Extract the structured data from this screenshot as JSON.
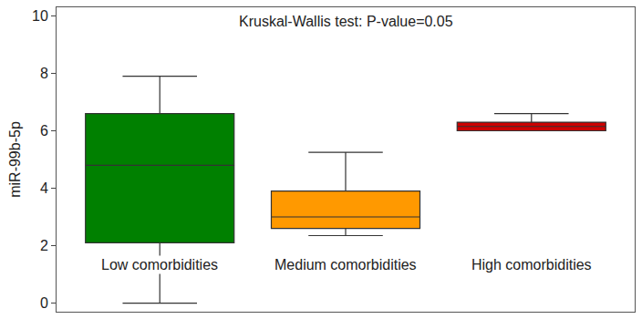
{
  "chart_data": {
    "type": "box",
    "title": "Kruskal-Wallis test: P-value=0.05",
    "y_label": "miR-99b-5p",
    "categories": [
      "Low comorbidities",
      "Medium comorbidities",
      "High comorbidities"
    ],
    "boxes": [
      {
        "min": 0,
        "q1": 2.1,
        "median": 4.8,
        "q3": 6.6,
        "max": 7.9
      },
      {
        "min": 2.35,
        "q1": 2.6,
        "median": 3.0,
        "q3": 3.9,
        "max": 5.25
      },
      {
        "min": 6.0,
        "q1": 6.0,
        "median": 6.15,
        "q3": 6.3,
        "max": 6.6
      }
    ],
    "colors": [
      "#008000",
      "#ff9900",
      "#cc0000"
    ],
    "ylim": [
      -0.3,
      10.3
    ],
    "yticks": [
      0,
      2,
      4,
      6,
      8,
      10
    ],
    "grid": false,
    "tick_labels": "y"
  }
}
